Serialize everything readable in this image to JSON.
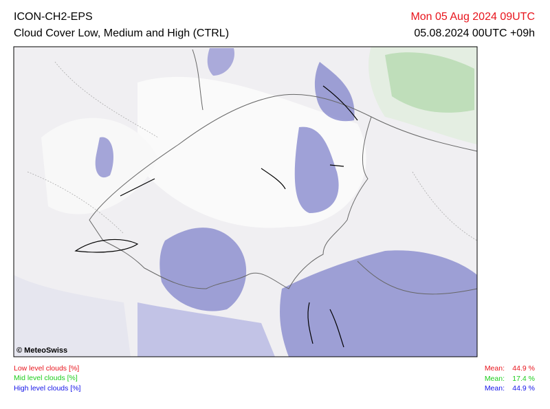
{
  "header": {
    "model": "ICON-CH2-EPS",
    "title": "Cloud Cover Low, Medium and High (CTRL)",
    "valid_time": "Mon 05 Aug 2024 09UTC",
    "run_time": "05.08.2024 00UTC +09h"
  },
  "map": {
    "credit": "© MeteoSwiss"
  },
  "legend": [
    {
      "label": "Low level clouds [%]",
      "mean_label": "Mean:",
      "mean": "44.9 %"
    },
    {
      "label": "Mid level clouds [%]",
      "mean_label": "Mean:",
      "mean": "17.4 %"
    },
    {
      "label": "High level clouds [%]",
      "mean_label": "Mean:",
      "mean": "44.9 %"
    }
  ]
}
